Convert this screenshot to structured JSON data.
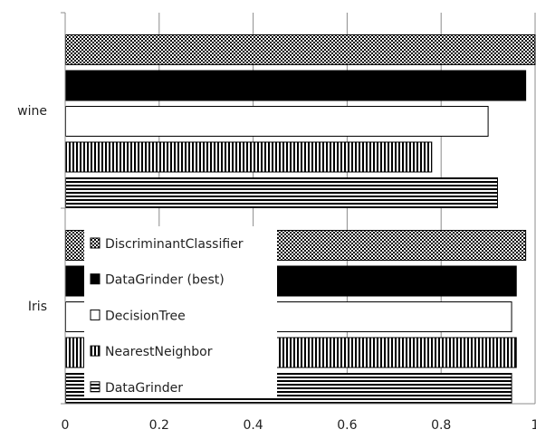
{
  "chart_data": {
    "type": "bar",
    "orientation": "horizontal",
    "categories": [
      "wine",
      "Iris"
    ],
    "series": [
      {
        "name": "DiscriminantClassifier",
        "values": [
          1.0,
          0.98
        ],
        "pattern": "crosshatch"
      },
      {
        "name": "DataGrinder (best)",
        "values": [
          0.98,
          0.96
        ],
        "pattern": "solid-black"
      },
      {
        "name": "DecisionTree",
        "values": [
          0.9,
          0.95
        ],
        "pattern": "white"
      },
      {
        "name": "NearestNeighbor",
        "values": [
          0.78,
          0.96
        ],
        "pattern": "vertical-lines"
      },
      {
        "name": "DataGrinder",
        "values": [
          0.92,
          0.95
        ],
        "pattern": "horizontal-lines"
      }
    ],
    "xlim": [
      0,
      1
    ],
    "xticks": [
      "0",
      "0.2",
      "0.4",
      "0.6",
      "0.8",
      "1"
    ],
    "grid": true,
    "legend_position": "inside-bottom-left",
    "title": "",
    "xlabel": "",
    "ylabel": ""
  }
}
